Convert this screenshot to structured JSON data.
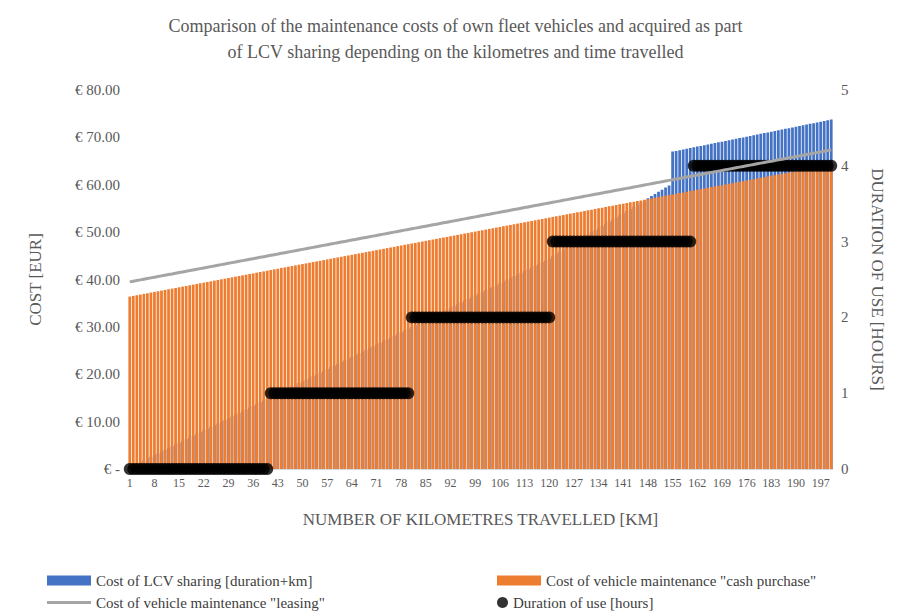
{
  "chart_data": {
    "type": "bar",
    "title": "Comparison of the maintenance costs of own fleet vehicles and acquired as part\nof LCV sharing depending on the kilometres and time travelled",
    "x_label": "NUMBER OF KILOMETRES TRAVELLED [KM]",
    "y_label": "COST [EUR]",
    "y2_label": "DURATION OF USE [HOURS]",
    "categories": [
      "1",
      null,
      null,
      null,
      null,
      null,
      null,
      "8",
      null,
      null,
      null,
      null,
      null,
      null,
      "15",
      null,
      null,
      null,
      null,
      null,
      null,
      "22",
      null,
      null,
      null,
      null,
      null,
      null,
      "29",
      null,
      null,
      null,
      null,
      null,
      null,
      "36",
      null,
      null,
      null,
      null,
      null,
      null,
      "43",
      null,
      null,
      null,
      null,
      null,
      null,
      "50",
      null,
      null,
      null,
      null,
      null,
      null,
      "57",
      null,
      null,
      null,
      null,
      null,
      null,
      "64",
      null,
      null,
      null,
      null,
      null,
      null,
      "71",
      null,
      null,
      null,
      null,
      null,
      null,
      "78",
      null,
      null,
      null,
      null,
      null,
      null,
      "85",
      null,
      null,
      null,
      null,
      null,
      null,
      "92",
      null,
      null,
      null,
      null,
      null,
      null,
      "99",
      null,
      null,
      null,
      null,
      null,
      null,
      "106",
      null,
      null,
      null,
      null,
      null,
      null,
      "113",
      null,
      null,
      null,
      null,
      null,
      null,
      "120",
      null,
      null,
      null,
      null,
      null,
      null,
      "127",
      null,
      null,
      null,
      null,
      null,
      null,
      "134",
      null,
      null,
      null,
      null,
      null,
      null,
      "141",
      null,
      null,
      null,
      null,
      null,
      null,
      "148",
      null,
      null,
      null,
      null,
      null,
      null,
      "155",
      null,
      null,
      null,
      null,
      null,
      null,
      "162",
      null,
      null,
      null,
      null,
      null,
      null,
      "169",
      null,
      null,
      null,
      null,
      null,
      null,
      "176",
      null,
      null,
      null,
      null,
      null,
      null,
      "183",
      null,
      null,
      null,
      null,
      null,
      null,
      "190",
      null,
      null,
      null,
      null,
      null,
      null,
      "197",
      null,
      null,
      null
    ],
    "series": [
      {
        "name": "Cost of LCV sharing [duration+km]",
        "type": "bar",
        "color": "#4472c4",
        "values": [
          0.37,
          0.74,
          1.11,
          1.48,
          1.85,
          2.22,
          2.59,
          2.96,
          3.33,
          3.7,
          4.07,
          4.44,
          4.81,
          5.18,
          5.55,
          5.92,
          6.29,
          6.66,
          7.03,
          7.4,
          7.77,
          8.14,
          8.51,
          8.88,
          9.25,
          9.62,
          9.99,
          10.36,
          10.73,
          11.1,
          11.47,
          11.84,
          12.21,
          12.58,
          12.95,
          13.32,
          13.69,
          14.06,
          14.43,
          14.8,
          15.17,
          15.54,
          15.91,
          16.28,
          16.65,
          17.02,
          17.39,
          17.76,
          18.13,
          18.5,
          18.87,
          19.24,
          19.61,
          19.98,
          20.35,
          20.72,
          21.09,
          21.46,
          21.83,
          22.2,
          22.57,
          22.94,
          23.31,
          23.68,
          24.05,
          24.42,
          24.79,
          25.16,
          25.53,
          25.9,
          26.27,
          26.64,
          27.01,
          27.38,
          27.75,
          28.12,
          28.49,
          28.86,
          29.23,
          29.6,
          29.97,
          30.34,
          30.71,
          31.08,
          31.45,
          31.82,
          32.19,
          32.56,
          32.93,
          33.3,
          33.67,
          34.04,
          34.41,
          34.78,
          35.15,
          35.52,
          35.89,
          36.26,
          36.63,
          37,
          37.37,
          37.74,
          38.11,
          38.48,
          38.85,
          39.22,
          39.59,
          39.96,
          40.33,
          40.7,
          41.07,
          41.44,
          41.81,
          42.18,
          42.55,
          42.92,
          43.29,
          43.66,
          44.03,
          44.4,
          45,
          45.45,
          45.9,
          46.35,
          46.8,
          47.25,
          47.7,
          48.15,
          48.6,
          49.05,
          49.5,
          49.95,
          50.4,
          50.85,
          51.3,
          51.75,
          52.2,
          52.65,
          53.1,
          53.55,
          54,
          54.45,
          54.9,
          55.35,
          55.8,
          56.25,
          56.7,
          57.15,
          57.6,
          58.05,
          58.5,
          58.95,
          59.4,
          59.85,
          67,
          67.15,
          67.3,
          67.45,
          67.6,
          67.75,
          67.9,
          68.05,
          68.2,
          68.35,
          68.5,
          68.65,
          68.8,
          68.95,
          69.1,
          69.25,
          69.4,
          69.55,
          69.7,
          69.85,
          70,
          70.15,
          70.3,
          70.45,
          70.6,
          70.75,
          70.9,
          71.05,
          71.2,
          71.35,
          71.5,
          71.65,
          71.8,
          71.95,
          72.1,
          72.25,
          72.4,
          72.55,
          72.7,
          72.85,
          73,
          73.15,
          73.3,
          73.45,
          73.6,
          73.75
        ]
      },
      {
        "name": "Cost of vehicle maintenance \"cash purchase\"",
        "type": "bar",
        "color": "#ed7d31",
        "values": [
          36.4,
          36.54,
          36.68,
          36.82,
          36.96,
          37.1,
          37.24,
          37.38,
          37.52,
          37.66,
          37.8,
          37.94,
          38.08,
          38.22,
          38.36,
          38.5,
          38.64,
          38.78,
          38.92,
          39.06,
          39.2,
          39.34,
          39.48,
          39.62,
          39.76,
          39.9,
          40.04,
          40.18,
          40.32,
          40.46,
          40.6,
          40.74,
          40.88,
          41.02,
          41.16,
          41.3,
          41.44,
          41.58,
          41.72,
          41.86,
          42,
          42.14,
          42.28,
          42.42,
          42.56,
          42.7,
          42.84,
          42.98,
          43.12,
          43.26,
          43.4,
          43.54,
          43.68,
          43.82,
          43.96,
          44.1,
          44.24,
          44.38,
          44.52,
          44.66,
          44.8,
          44.94,
          45.08,
          45.22,
          45.36,
          45.5,
          45.64,
          45.78,
          45.92,
          46.06,
          46.2,
          46.34,
          46.48,
          46.62,
          46.76,
          46.9,
          47.04,
          47.18,
          47.32,
          47.46,
          47.6,
          47.74,
          47.88,
          48.02,
          48.16,
          48.3,
          48.44,
          48.58,
          48.72,
          48.86,
          49,
          49.14,
          49.28,
          49.42,
          49.56,
          49.7,
          49.84,
          49.98,
          50.12,
          50.26,
          50.4,
          50.54,
          50.68,
          50.82,
          50.96,
          51.1,
          51.24,
          51.38,
          51.52,
          51.66,
          51.8,
          51.94,
          52.08,
          52.22,
          52.36,
          52.5,
          52.64,
          52.78,
          52.92,
          53.06,
          53.2,
          53.34,
          53.48,
          53.62,
          53.76,
          53.9,
          54.04,
          54.18,
          54.32,
          54.46,
          54.6,
          54.74,
          54.88,
          55.02,
          55.16,
          55.3,
          55.44,
          55.58,
          55.72,
          55.86,
          56,
          56.14,
          56.28,
          56.42,
          56.56,
          56.7,
          56.84,
          56.98,
          57.12,
          57.26,
          57.4,
          57.54,
          57.68,
          57.82,
          57.96,
          58.1,
          58.24,
          58.38,
          58.52,
          58.66,
          58.8,
          58.94,
          59.08,
          59.22,
          59.36,
          59.5,
          59.64,
          59.78,
          59.92,
          60.06,
          60.2,
          60.34,
          60.48,
          60.62,
          60.76,
          60.9,
          61.04,
          61.18,
          61.32,
          61.46,
          61.6,
          61.74,
          61.88,
          62.02,
          62.16,
          62.3,
          62.44,
          62.58,
          62.72,
          62.86,
          63,
          63.14,
          63.28,
          63.42,
          63.56,
          63.7,
          63.84,
          63.98,
          64.12,
          64.26
        ]
      },
      {
        "name": "Cost of vehicle maintenance \"leasing\"",
        "type": "line",
        "color": "#a5a5a5",
        "line_style": "solid",
        "values": [
          39.5,
          39.64,
          39.78,
          39.92,
          40.06,
          40.2,
          40.34,
          40.48,
          40.62,
          40.76,
          40.9,
          41.04,
          41.18,
          41.32,
          41.46,
          41.6,
          41.74,
          41.88,
          42.02,
          42.16,
          42.3,
          42.44,
          42.58,
          42.72,
          42.86,
          43,
          43.14,
          43.28,
          43.42,
          43.56,
          43.7,
          43.84,
          43.98,
          44.12,
          44.26,
          44.4,
          44.54,
          44.68,
          44.82,
          44.96,
          45.1,
          45.24,
          45.38,
          45.52,
          45.66,
          45.8,
          45.94,
          46.08,
          46.22,
          46.36,
          46.5,
          46.64,
          46.78,
          46.92,
          47.06,
          47.2,
          47.34,
          47.48,
          47.62,
          47.76,
          47.9,
          48.04,
          48.18,
          48.32,
          48.46,
          48.6,
          48.74,
          48.88,
          49.02,
          49.16,
          49.3,
          49.44,
          49.58,
          49.72,
          49.86,
          50,
          50.14,
          50.28,
          50.42,
          50.56,
          50.7,
          50.84,
          50.98,
          51.12,
          51.26,
          51.4,
          51.54,
          51.68,
          51.82,
          51.96,
          52.1,
          52.24,
          52.38,
          52.52,
          52.66,
          52.8,
          52.94,
          53.08,
          53.22,
          53.36,
          53.5,
          53.64,
          53.78,
          53.92,
          54.06,
          54.2,
          54.34,
          54.48,
          54.62,
          54.76,
          54.9,
          55.04,
          55.18,
          55.32,
          55.46,
          55.6,
          55.74,
          55.88,
          56.02,
          56.16,
          56.3,
          56.44,
          56.58,
          56.72,
          56.86,
          57,
          57.14,
          57.28,
          57.42,
          57.56,
          57.7,
          57.84,
          57.98,
          58.12,
          58.26,
          58.4,
          58.54,
          58.68,
          58.82,
          58.96,
          59.1,
          59.24,
          59.38,
          59.52,
          59.66,
          59.8,
          59.94,
          60.08,
          60.22,
          60.36,
          60.5,
          60.64,
          60.78,
          60.92,
          61.06,
          61.2,
          61.34,
          61.48,
          61.62,
          61.76,
          61.9,
          62.04,
          62.18,
          62.32,
          62.46,
          62.6,
          62.74,
          62.88,
          63.02,
          63.16,
          63.3,
          63.44,
          63.58,
          63.72,
          63.86,
          64,
          64.14,
          64.28,
          64.42,
          64.56,
          64.7,
          64.84,
          64.98,
          65.12,
          65.26,
          65.4,
          65.54,
          65.68,
          65.82,
          65.96,
          66.1,
          66.24,
          66.38,
          66.52,
          66.66,
          66.8,
          66.94,
          67.08,
          67.22,
          67.36
        ]
      },
      {
        "name": "Duration of use [hours]",
        "type": "scatter",
        "color": "#000000",
        "marker": "circle",
        "axis": "y2",
        "values": [
          0,
          0,
          0,
          0,
          0,
          0,
          0,
          0,
          0,
          0,
          0,
          0,
          0,
          0,
          0,
          0,
          0,
          0,
          0,
          0,
          0,
          0,
          0,
          0,
          0,
          0,
          0,
          0,
          0,
          0,
          0,
          0,
          0,
          0,
          0,
          0,
          0,
          0,
          0,
          0,
          1,
          1,
          1,
          1,
          1,
          1,
          1,
          1,
          1,
          1,
          1,
          1,
          1,
          1,
          1,
          1,
          1,
          1,
          1,
          1,
          1,
          1,
          1,
          1,
          1,
          1,
          1,
          1,
          1,
          1,
          1,
          1,
          1,
          1,
          1,
          1,
          1,
          1,
          1,
          1,
          2,
          2,
          2,
          2,
          2,
          2,
          2,
          2,
          2,
          2,
          2,
          2,
          2,
          2,
          2,
          2,
          2,
          2,
          2,
          2,
          2,
          2,
          2,
          2,
          2,
          2,
          2,
          2,
          2,
          2,
          2,
          2,
          2,
          2,
          2,
          2,
          2,
          2,
          2,
          2,
          3,
          3,
          3,
          3,
          3,
          3,
          3,
          3,
          3,
          3,
          3,
          3,
          3,
          3,
          3,
          3,
          3,
          3,
          3,
          3,
          3,
          3,
          3,
          3,
          3,
          3,
          3,
          3,
          3,
          3,
          3,
          3,
          3,
          3,
          3,
          3,
          3,
          3,
          3,
          3,
          4,
          4,
          4,
          4,
          4,
          4,
          4,
          4,
          4,
          4,
          4,
          4,
          4,
          4,
          4,
          4,
          4,
          4,
          4,
          4,
          4,
          4,
          4,
          4,
          4,
          4,
          4,
          4,
          4,
          4,
          4,
          4,
          4,
          4,
          4,
          4,
          4,
          4,
          4,
          4
        ]
      }
    ],
    "ylim": [
      0,
      80
    ],
    "yticks": [
      {
        "value": 0,
        "label": "€ -"
      },
      {
        "value": 10,
        "label": "€ 10.00"
      },
      {
        "value": 20,
        "label": "€ 20.00"
      },
      {
        "value": 30,
        "label": "€ 30.00"
      },
      {
        "value": 40,
        "label": "€ 40.00"
      },
      {
        "value": 50,
        "label": "€ 50.00"
      },
      {
        "value": 60,
        "label": "€ 60.00"
      },
      {
        "value": 70,
        "label": "€ 70.00"
      },
      {
        "value": 80,
        "label": "€ 80.00"
      }
    ],
    "y2lim": [
      0,
      5
    ],
    "y2ticks": [
      0,
      1,
      2,
      3,
      4,
      5
    ],
    "grid": false,
    "legend": "bottom"
  }
}
